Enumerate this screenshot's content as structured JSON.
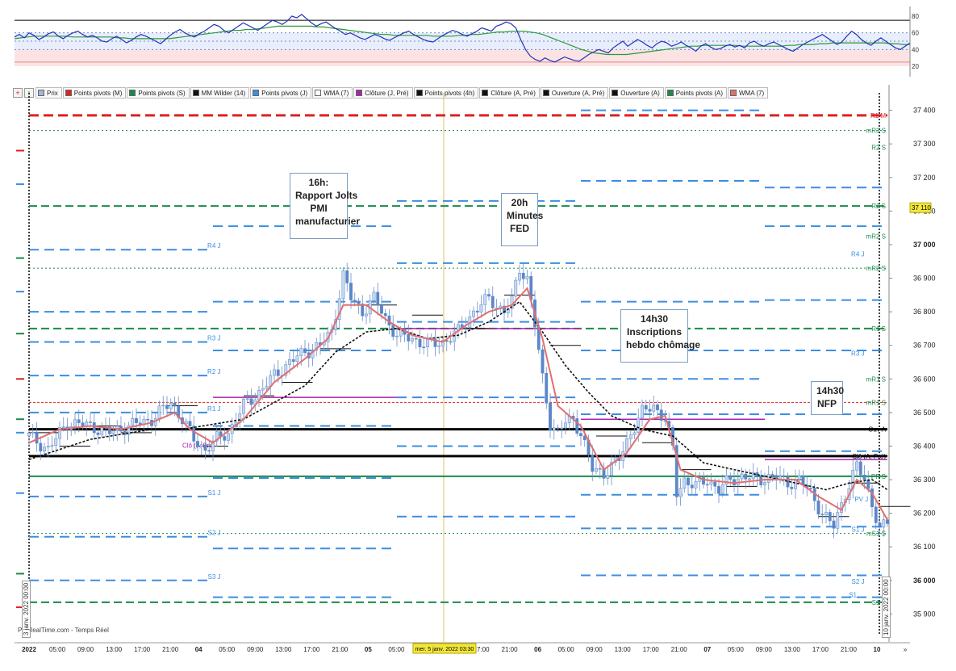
{
  "toolbar": {
    "icons": [
      {
        "name": "add-icon",
        "glyph": "+",
        "color": "#cc2222"
      },
      {
        "name": "up-arrow-icon",
        "glyph": "↑",
        "color": "#228822"
      }
    ],
    "legend": [
      {
        "label": "Prix",
        "color": "#9fb7d9"
      },
      {
        "label": "Points pivots (M)",
        "color": "#dd2222"
      },
      {
        "label": "Points pivots (S)",
        "color": "#1a8a4a"
      },
      {
        "label": "MM Wilder (14)",
        "color": "#111111"
      },
      {
        "label": "Points pivots (J)",
        "color": "#3b8ee0"
      },
      {
        "label": "WMA (7)",
        "color": "#ffffff"
      },
      {
        "label": "Clôture (J, Pré)",
        "color": "#aa22aa"
      },
      {
        "label": "Points pivots (4h)",
        "color": "#111111"
      },
      {
        "label": "Clôture (A, Pré)",
        "color": "#111111"
      },
      {
        "label": "Ouverture (A, Pré)",
        "color": "#111111"
      },
      {
        "label": "Ouverture (A)",
        "color": "#111111"
      },
      {
        "label": "Points pivots (A)",
        "color": "#1a8a4a"
      },
      {
        "label": "WMA (7)",
        "color": "#e07070"
      }
    ]
  },
  "rsi": {
    "ticks": [
      "80",
      "60",
      "40",
      "20"
    ]
  },
  "annotations": {
    "jolts": [
      "16h:",
      "Rapport Jolts",
      "PMI",
      "manufacturier"
    ],
    "fed": [
      "20h",
      "Minutes",
      "FED"
    ],
    "jobless": [
      "14h30",
      "Inscriptions",
      "hebdo chômage"
    ],
    "nfp": [
      "14h30",
      "NFP"
    ]
  },
  "watermark": "ProRealTime.com - Temps Réel",
  "date_markers": {
    "left": "3 janv. 2022 00:00",
    "right": "10 janv. 2022 00:00",
    "cursor": "mer. 5 janv. 2022 03:30"
  },
  "current_price_label": "37 110",
  "chart_data": {
    "type": "candlestick",
    "instrument_note": "",
    "y_axis": {
      "ticks": [
        "37 400",
        "37 300",
        "37 200",
        "37 100",
        "37 000",
        "36 900",
        "36 800",
        "36 700",
        "36 600",
        "36 500",
        "36 400",
        "36 300",
        "36 200",
        "36 100",
        "36 000",
        "35 900"
      ],
      "range": [
        35860,
        37440
      ]
    },
    "x_axis": {
      "labels": [
        "2022",
        "05:00",
        "09:00",
        "13:00",
        "17:00",
        "21:00",
        "04",
        "05:00",
        "09:00",
        "13:00",
        "17:00",
        "21:00",
        "05",
        "05:00",
        "09:00",
        "13:00",
        "17:00",
        "21:00",
        "06",
        "05:00",
        "09:00",
        "13:00",
        "17:00",
        "21:00",
        "07",
        "05:00",
        "09:00",
        "13:00",
        "17:00",
        "21:00",
        "10",
        "»"
      ]
    },
    "close_path": [
      [
        0,
        36430
      ],
      [
        5,
        36390
      ],
      [
        10,
        36470
      ],
      [
        16,
        36460
      ],
      [
        21,
        36440
      ],
      [
        26,
        36460
      ],
      [
        32,
        36480
      ],
      [
        37,
        36530
      ],
      [
        40,
        36480
      ],
      [
        43,
        36420
      ],
      [
        46,
        36390
      ],
      [
        49,
        36420
      ],
      [
        52,
        36440
      ],
      [
        56,
        36520
      ],
      [
        60,
        36560
      ],
      [
        64,
        36610
      ],
      [
        68,
        36650
      ],
      [
        72,
        36680
      ],
      [
        76,
        36700
      ],
      [
        79,
        36740
      ],
      [
        82,
        36910
      ],
      [
        84,
        36840
      ],
      [
        87,
        36800
      ],
      [
        90,
        36840
      ],
      [
        93,
        36780
      ],
      [
        96,
        36730
      ],
      [
        100,
        36720
      ],
      [
        104,
        36700
      ],
      [
        108,
        36710
      ],
      [
        112,
        36740
      ],
      [
        116,
        36800
      ],
      [
        120,
        36840
      ],
      [
        124,
        36800
      ],
      [
        126,
        36830
      ],
      [
        128,
        36930
      ],
      [
        130,
        36900
      ],
      [
        132,
        36760
      ],
      [
        134,
        36600
      ],
      [
        136,
        36470
      ],
      [
        138,
        36440
      ],
      [
        140,
        36470
      ],
      [
        142,
        36480
      ],
      [
        144,
        36440
      ],
      [
        147,
        36330
      ],
      [
        150,
        36320
      ],
      [
        154,
        36360
      ],
      [
        157,
        36440
      ],
      [
        160,
        36500
      ],
      [
        163,
        36520
      ],
      [
        166,
        36480
      ],
      [
        168,
        36390
      ],
      [
        169,
        36260
      ],
      [
        171,
        36300
      ],
      [
        174,
        36280
      ],
      [
        177,
        36300
      ],
      [
        180,
        36270
      ],
      [
        183,
        36300
      ],
      [
        186,
        36310
      ],
      [
        190,
        36300
      ],
      [
        194,
        36310
      ],
      [
        198,
        36290
      ],
      [
        201,
        36300
      ],
      [
        204,
        36260
      ],
      [
        207,
        36200
      ],
      [
        210,
        36160
      ],
      [
        213,
        36260
      ],
      [
        216,
        36340
      ],
      [
        218,
        36300
      ],
      [
        220,
        36230
      ],
      [
        222,
        36150
      ],
      [
        224,
        36170
      ]
    ],
    "wilder_path": [
      [
        0,
        36360
      ],
      [
        16,
        36420
      ],
      [
        32,
        36450
      ],
      [
        40,
        36450
      ],
      [
        56,
        36480
      ],
      [
        72,
        36580
      ],
      [
        80,
        36680
      ],
      [
        88,
        36740
      ],
      [
        96,
        36750
      ],
      [
        104,
        36720
      ],
      [
        112,
        36730
      ],
      [
        120,
        36770
      ],
      [
        128,
        36830
      ],
      [
        134,
        36740
      ],
      [
        140,
        36640
      ],
      [
        146,
        36560
      ],
      [
        152,
        36490
      ],
      [
        160,
        36450
      ],
      [
        168,
        36430
      ],
      [
        176,
        36350
      ],
      [
        184,
        36330
      ],
      [
        192,
        36310
      ],
      [
        200,
        36290
      ],
      [
        208,
        36270
      ],
      [
        214,
        36290
      ],
      [
        220,
        36300
      ],
      [
        224,
        36270
      ]
    ],
    "wma_path": [
      [
        0,
        36410
      ],
      [
        8,
        36450
      ],
      [
        16,
        36460
      ],
      [
        24,
        36450
      ],
      [
        32,
        36470
      ],
      [
        38,
        36500
      ],
      [
        42,
        36450
      ],
      [
        48,
        36410
      ],
      [
        56,
        36480
      ],
      [
        64,
        36590
      ],
      [
        72,
        36660
      ],
      [
        78,
        36720
      ],
      [
        82,
        36820
      ],
      [
        88,
        36820
      ],
      [
        94,
        36770
      ],
      [
        100,
        36730
      ],
      [
        108,
        36710
      ],
      [
        114,
        36760
      ],
      [
        120,
        36800
      ],
      [
        126,
        36820
      ],
      [
        130,
        36870
      ],
      [
        134,
        36720
      ],
      [
        138,
        36520
      ],
      [
        144,
        36460
      ],
      [
        150,
        36330
      ],
      [
        156,
        36380
      ],
      [
        162,
        36480
      ],
      [
        166,
        36490
      ],
      [
        170,
        36330
      ],
      [
        176,
        36300
      ],
      [
        184,
        36290
      ],
      [
        192,
        36300
      ],
      [
        200,
        36300
      ],
      [
        206,
        36250
      ],
      [
        212,
        36210
      ],
      [
        216,
        36300
      ],
      [
        220,
        36260
      ],
      [
        224,
        36180
      ]
    ],
    "hlines": [
      {
        "y": 37385,
        "color": "#dd2222",
        "width": 3,
        "dash": "12,6",
        "label": "R1 M",
        "label_color": "#dd2222",
        "from": 0,
        "to": 224
      },
      {
        "y": 37340,
        "color": "#1a8a4a",
        "width": 1,
        "dash": "2,3",
        "label": "mR3 S",
        "label_color": "#1a8a4a",
        "from": 0,
        "to": 224
      },
      {
        "y": 37290,
        "color": "#1a8a4a",
        "width": 0,
        "dash": "",
        "label": "R2 S",
        "label_color": "#1a8a4a",
        "from": 0,
        "to": 0
      },
      {
        "y": 37115,
        "color": "#1a8a4a",
        "width": 2,
        "dash": "10,5",
        "label": "R2 S",
        "label_color": "#1a8a4a",
        "from": 0,
        "to": 224
      },
      {
        "y": 37025,
        "color": "#1a8a4a",
        "width": 0,
        "dash": "",
        "label": "mR2 S",
        "label_color": "#1a8a4a",
        "from": 0,
        "to": 0
      },
      {
        "y": 36930,
        "color": "#1a8a4a",
        "width": 1,
        "dash": "2,3",
        "label": "mR2 S",
        "label_color": "#1a8a4a",
        "from": 0,
        "to": 224
      },
      {
        "y": 36750,
        "color": "#1a8a4a",
        "width": 2,
        "dash": "10,5",
        "label": "R1 S",
        "label_color": "#1a8a4a",
        "from": 0,
        "to": 224
      },
      {
        "y": 36530,
        "color": "#dd2222",
        "width": 1,
        "dash": "3,2",
        "label": "mR1 S",
        "label_color": "#1a8a4a",
        "from": 0,
        "to": 224
      },
      {
        "y": 36600,
        "color": "#1a8a4a",
        "width": 0,
        "dash": "",
        "label": "mR1 S",
        "label_color": "#1a8a4a",
        "from": 0,
        "to": 0
      },
      {
        "y": 36450,
        "color": "#000000",
        "width": 3,
        "dash": "",
        "label": "Ouv A",
        "label_color": "#000000",
        "from": 0,
        "to": 224
      },
      {
        "y": 36370,
        "color": "#000000",
        "width": 3,
        "dash": "",
        "label": "Clô (A, Pré)",
        "label_color": "#000000",
        "from": 0,
        "to": 224
      },
      {
        "y": 36310,
        "color": "#1a8a4a",
        "width": 2,
        "dash": "",
        "label": "PP S",
        "label_color": "#1a8a4a",
        "from": 0,
        "to": 224
      },
      {
        "y": 36140,
        "color": "#1a8a4a",
        "width": 1,
        "dash": "2,3",
        "label": "mS1 S",
        "label_color": "#1a8a4a",
        "from": 0,
        "to": 224
      },
      {
        "y": 35935,
        "color": "#1a8a4a",
        "width": 2,
        "dash": "10,5",
        "label": "S1 S",
        "label_color": "#1a8a4a",
        "from": 0,
        "to": 224
      }
    ],
    "daily_pivots": [
      {
        "from": 0,
        "to": 48,
        "levels": [
          36985,
          36800,
          36710,
          36610,
          36500,
          36250,
          36130,
          36000
        ]
      },
      {
        "from": 48,
        "to": 96,
        "levels": [
          37055,
          36830,
          36685,
          36460,
          36305,
          36095,
          35950
        ]
      },
      {
        "from": 96,
        "to": 144,
        "levels": [
          37130,
          36945,
          36770,
          36545,
          36400,
          36190
        ]
      },
      {
        "from": 144,
        "to": 192,
        "levels": [
          37400,
          37190,
          36830,
          36685,
          36600,
          36495,
          36255,
          36155,
          36015
        ]
      },
      {
        "from": 192,
        "to": 224,
        "levels": [
          37170,
          37055,
          36835,
          36685,
          36495,
          36385,
          36160,
          36015,
          35950
        ]
      }
    ],
    "daily_labels": [
      {
        "x": 50,
        "y": 36985,
        "text": "R4 J"
      },
      {
        "x": 50,
        "y": 36710,
        "text": "R3 J"
      },
      {
        "x": 50,
        "y": 36610,
        "text": "R2 J"
      },
      {
        "x": 50,
        "y": 36500,
        "text": "R1 J"
      },
      {
        "x": 50,
        "y": 36250,
        "text": "S1 J"
      },
      {
        "x": 50,
        "y": 36130,
        "text": "S2 J"
      },
      {
        "x": 50,
        "y": 36000,
        "text": "S3 J"
      },
      {
        "x": 218,
        "y": 36960,
        "text": "R4 J"
      },
      {
        "x": 218,
        "y": 36665,
        "text": "R3 J"
      },
      {
        "x": 219,
        "y": 36230,
        "text": "PV J"
      },
      {
        "x": 218,
        "y": 36140,
        "text": "S1 J"
      },
      {
        "x": 218,
        "y": 35985,
        "text": "S2 J"
      },
      {
        "x": 216,
        "y": 35945,
        "text": "S1"
      }
    ],
    "prev_day_close": [
      {
        "from": 48,
        "to": 96,
        "y": 36545
      },
      {
        "from": 96,
        "to": 144,
        "y": 36750
      },
      {
        "from": 144,
        "to": 192,
        "y": 36480
      },
      {
        "from": 192,
        "to": 224,
        "y": 36360
      }
    ],
    "prev_close_label": {
      "x": 40,
      "y": 36390,
      "text": "Clô (J, Pré)"
    },
    "pivot4h": [
      [
        0,
        36440
      ],
      [
        8,
        36400
      ],
      [
        16,
        36460
      ],
      [
        24,
        36440
      ],
      [
        36,
        36520
      ],
      [
        44,
        36400
      ],
      [
        56,
        36550
      ],
      [
        66,
        36590
      ],
      [
        76,
        36690
      ],
      [
        88,
        36820
      ],
      [
        100,
        36790
      ],
      [
        112,
        36750
      ],
      [
        124,
        36850
      ],
      [
        136,
        36700
      ],
      [
        148,
        36430
      ],
      [
        160,
        36410
      ],
      [
        170,
        36330
      ],
      [
        182,
        36280
      ],
      [
        194,
        36300
      ],
      [
        206,
        36190
      ],
      [
        214,
        36290
      ],
      [
        222,
        36220
      ]
    ]
  },
  "rsi_data": {
    "ticks": [
      80,
      60,
      40,
      20
    ],
    "levels": [
      75,
      60,
      50,
      40,
      25
    ],
    "rsi": [
      55,
      58,
      54,
      60,
      57,
      52,
      55,
      59,
      61,
      56,
      53,
      57,
      60,
      62,
      58,
      55,
      57,
      54,
      50,
      49,
      53,
      56,
      52,
      48,
      51,
      55,
      58,
      56,
      53,
      50,
      47,
      52,
      57,
      61,
      64,
      60,
      57,
      55,
      59,
      62,
      66,
      70,
      68,
      63,
      60,
      64,
      68,
      72,
      69,
      66,
      63,
      67,
      71,
      75,
      73,
      70,
      74,
      80,
      78,
      82,
      77,
      72,
      68,
      71,
      73,
      69,
      65,
      62,
      58,
      60,
      57,
      54,
      52,
      55,
      58,
      56,
      53,
      51,
      54,
      57,
      60,
      62,
      58,
      55,
      52,
      50,
      49,
      53,
      57,
      60,
      63,
      61,
      58,
      56,
      59,
      62,
      66,
      64,
      62,
      68,
      70,
      73,
      71,
      66,
      52,
      40,
      32,
      28,
      26,
      30,
      27,
      25,
      28,
      31,
      29,
      27,
      26,
      30,
      34,
      37,
      40,
      38,
      36,
      42,
      46,
      50,
      44,
      48,
      52,
      49,
      45,
      42,
      47,
      50,
      48,
      44,
      46,
      49,
      45,
      42,
      38,
      44,
      47,
      43,
      40,
      41,
      44,
      46,
      43,
      45,
      42,
      48,
      50,
      46,
      44,
      47,
      49,
      46,
      43,
      40,
      38,
      42,
      46,
      49,
      52,
      55,
      58,
      54,
      50,
      46,
      49,
      56,
      62,
      58,
      52,
      48,
      45,
      50,
      54,
      50,
      46,
      42,
      40,
      44,
      48
    ],
    "ma": [
      53,
      54,
      55,
      56,
      56,
      56,
      56,
      56,
      56,
      55,
      55,
      55,
      55,
      55,
      55,
      55,
      54,
      54,
      53,
      53,
      53,
      53,
      53,
      53,
      53,
      54,
      55,
      56,
      57,
      58,
      59,
      60,
      61,
      62,
      63,
      63,
      64,
      64,
      65,
      66,
      67,
      68,
      68,
      68,
      68,
      68,
      68,
      67,
      67,
      66,
      65,
      64,
      63,
      62,
      61,
      60,
      59,
      58,
      58,
      57,
      57,
      57,
      57,
      57,
      57,
      56,
      56,
      56,
      56,
      57,
      57,
      58,
      58,
      59,
      60,
      61,
      61,
      62,
      62,
      62,
      61,
      60,
      58,
      55,
      52,
      49,
      46,
      43,
      40,
      38,
      36,
      35,
      34,
      34,
      34,
      34,
      35,
      36,
      37,
      38,
      39,
      40,
      41,
      42,
      43,
      44,
      44,
      45,
      45,
      45,
      45,
      45,
      45,
      44,
      44,
      44,
      44,
      44,
      44,
      44,
      45,
      45,
      46,
      46,
      46,
      47,
      47,
      48,
      48,
      48,
      48,
      48,
      48,
      48,
      48,
      48,
      47,
      47,
      46,
      46
    ]
  }
}
